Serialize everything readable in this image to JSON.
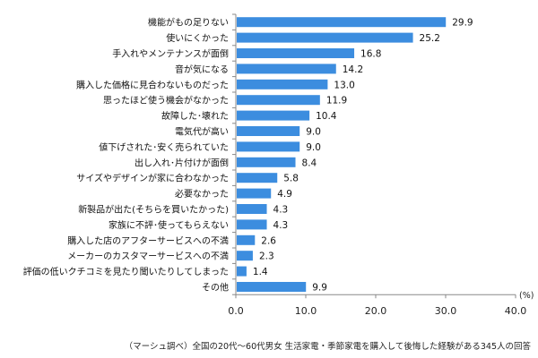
{
  "chart_data": {
    "type": "bar",
    "orientation": "horizontal",
    "categories": [
      "機能がもの足りない",
      "使いにくかった",
      "手入れやメンテナンスが面倒",
      "音が気になる",
      "購入した価格に見合わないものだった",
      "思ったほど使う機会がなかった",
      "故障した･壊れた",
      "電気代が高い",
      "値下げされた･安く売られていた",
      "出し入れ･片付けが面倒",
      "サイズやデザインが家に合わなかった",
      "必要なかった",
      "新製品が出た(そちらを買いたかった)",
      "家族に不評･使ってもらえない",
      "購入した店のアフターサービスへの不満",
      "メーカーのカスタマーサービスへの不満",
      "評価の低いクチコミを見たり聞いたりしてしまった",
      "その他"
    ],
    "values": [
      29.9,
      25.2,
      16.8,
      14.2,
      13.0,
      11.9,
      10.4,
      9.0,
      9.0,
      8.4,
      5.8,
      4.9,
      4.3,
      4.3,
      2.6,
      2.3,
      1.4,
      9.9
    ],
    "value_labels": [
      "29.9",
      "25.2",
      "16.8",
      "14.2",
      "13.0",
      "11.9",
      "10.4",
      "9.0",
      "9.0",
      "8.4",
      "5.8",
      "4.9",
      "4.3",
      "4.3",
      "2.6",
      "2.3",
      "1.4",
      "9.9"
    ],
    "xlim": [
      0,
      40
    ],
    "xticks": [
      "0.0",
      "10.0",
      "20.0",
      "30.0",
      "40.0"
    ],
    "unit_label": "(%)",
    "bar_color": "#3c8ddf",
    "grid": false,
    "legend": "none"
  },
  "footnote": "（マーシュ調べ）全国の20代～60代男女 生活家電・季節家電を購入して後悔した経験がある345人の回答"
}
